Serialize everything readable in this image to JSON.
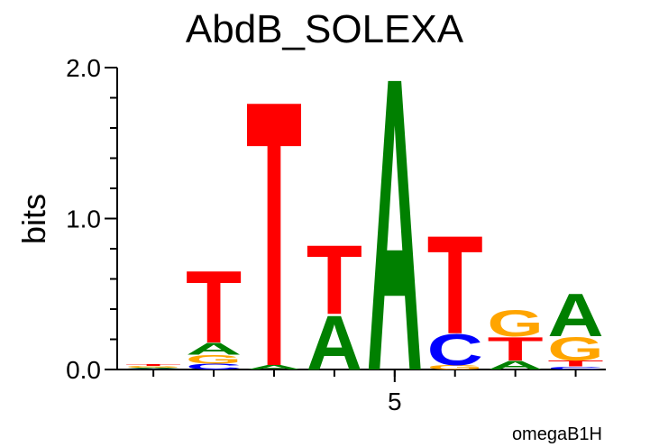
{
  "chart_data": {
    "type": "logo",
    "title": "AbdB_SOLEXA",
    "ylabel": "bits",
    "annotation": "omegaB1H",
    "ylim": [
      0,
      2
    ],
    "yticks": [
      {
        "value": 0,
        "label": "0.0"
      },
      {
        "value": 1,
        "label": "1.0"
      },
      {
        "value": 2,
        "label": "2.0"
      }
    ],
    "yminor": [
      0.2,
      0.4,
      0.6,
      0.8,
      1.2,
      1.4,
      1.6,
      1.8
    ],
    "xlim": [
      0.4,
      8.5
    ],
    "xticks": [
      5
    ],
    "colors": {
      "A": "#008000",
      "C": "#0000ff",
      "G": "#ffa500",
      "T": "#ff0000"
    },
    "positions": [
      {
        "x": 1,
        "letters": [
          {
            "letter": "C",
            "value": 0.005
          },
          {
            "letter": "A",
            "value": 0.008
          },
          {
            "letter": "G",
            "value": 0.01
          },
          {
            "letter": "T",
            "value": 0.012
          }
        ]
      },
      {
        "x": 2,
        "letters": [
          {
            "letter": "C",
            "value": 0.04
          },
          {
            "letter": "G",
            "value": 0.06
          },
          {
            "letter": "A",
            "value": 0.08
          },
          {
            "letter": "T",
            "value": 0.49
          }
        ]
      },
      {
        "x": 3,
        "letters": [
          {
            "letter": "A",
            "value": 0.03
          },
          {
            "letter": "T",
            "value": 1.81
          }
        ]
      },
      {
        "x": 4,
        "letters": [
          {
            "letter": "A",
            "value": 0.37
          },
          {
            "letter": "T",
            "value": 0.47
          }
        ]
      },
      {
        "x": 5,
        "letters": [
          {
            "letter": "A",
            "value": 2.0
          }
        ]
      },
      {
        "x": 6,
        "letters": [
          {
            "letter": "G",
            "value": 0.03
          },
          {
            "letter": "C",
            "value": 0.21
          },
          {
            "letter": "T",
            "value": 0.67
          }
        ]
      },
      {
        "x": 7,
        "letters": [
          {
            "letter": "A",
            "value": 0.06
          },
          {
            "letter": "T",
            "value": 0.16
          },
          {
            "letter": "G",
            "value": 0.18
          }
        ]
      },
      {
        "x": 8,
        "letters": [
          {
            "letter": "C",
            "value": 0.02
          },
          {
            "letter": "T",
            "value": 0.04
          },
          {
            "letter": "G",
            "value": 0.16
          },
          {
            "letter": "A",
            "value": 0.29
          }
        ]
      }
    ]
  }
}
